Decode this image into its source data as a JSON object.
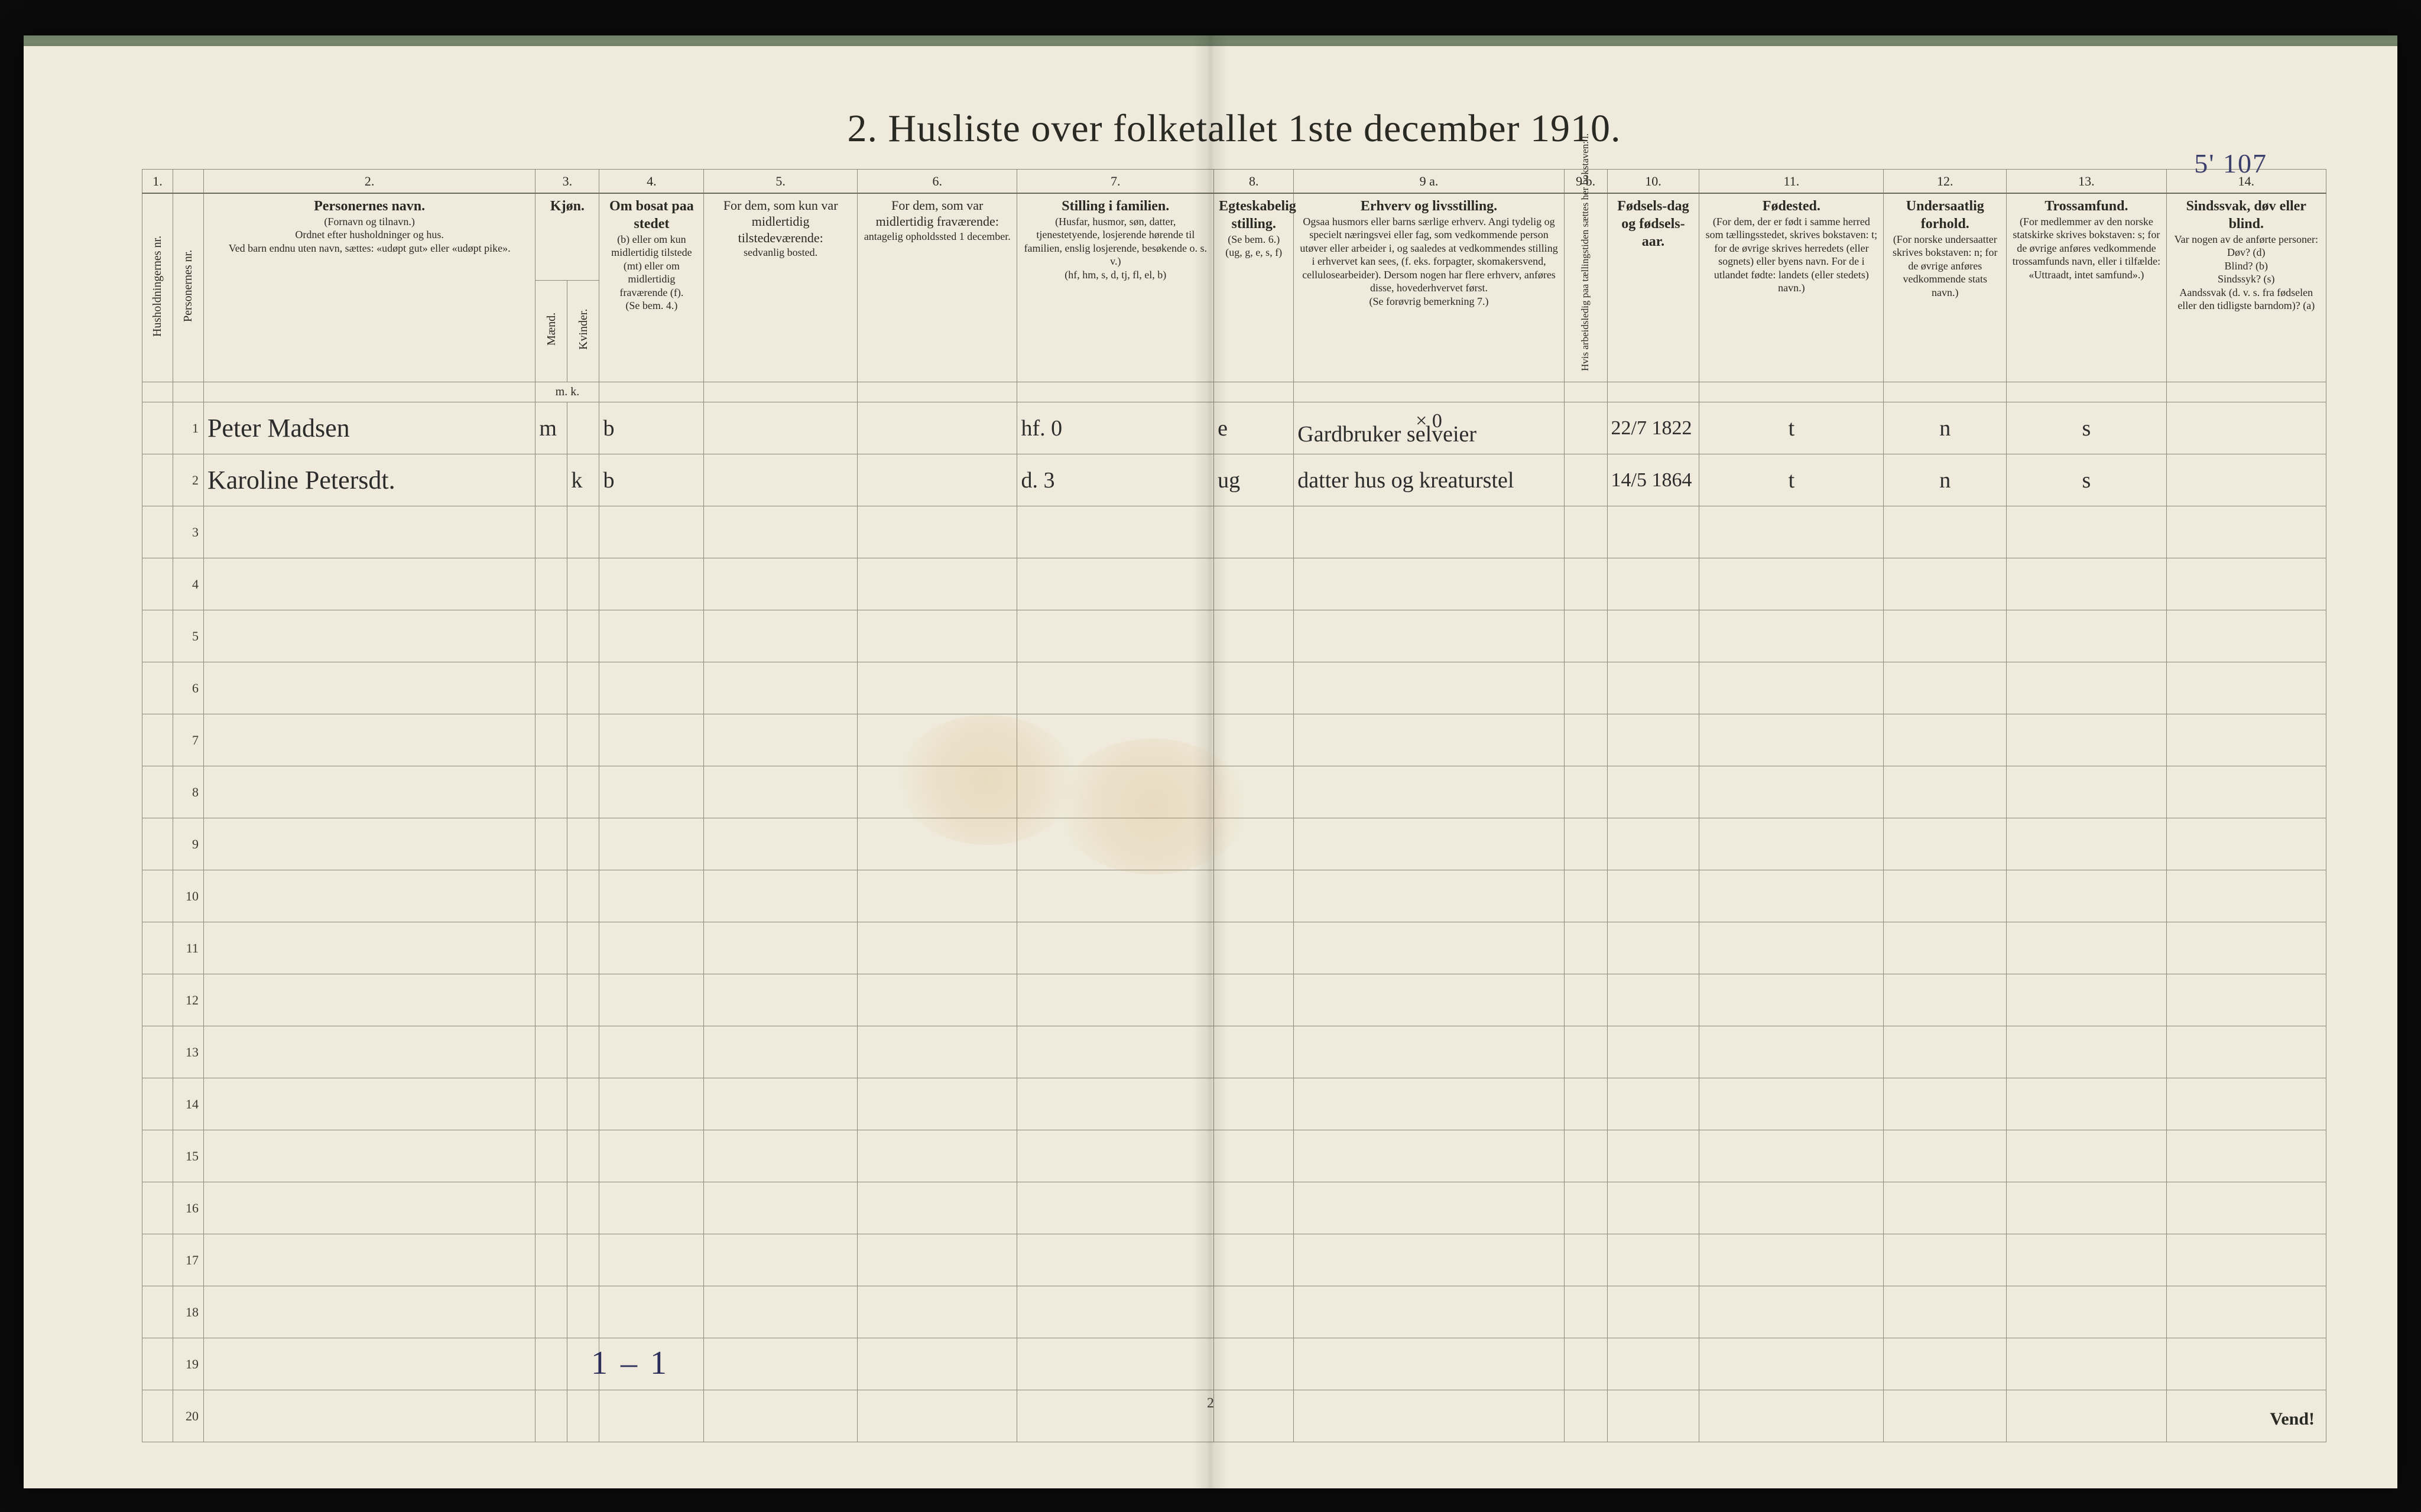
{
  "title": "2.  Husliste over folketallet 1ste december 1910.",
  "page_annotation": "5' 107",
  "bottom_tally": "1 – 1",
  "footer_page_number": "2",
  "footer_vend": "Vend!",
  "colors": {
    "paper": "#efeadb",
    "ink": "#2a2a24",
    "rule": "#8b8b7a",
    "handwriting": "#2c2c2c",
    "pencil_blue": "#2b2e58",
    "frame_black": "#000000"
  },
  "typography": {
    "title_fontsize_pt": 48,
    "header_fontsize_pt": 16,
    "header_small_fontsize_pt": 13,
    "body_row_fontsize_pt": 16,
    "handwriting_fontsize_pt": 32
  },
  "column_numbers": [
    "1.",
    "",
    "2.",
    "3.",
    "",
    "4.",
    "5.",
    "6.",
    "7.",
    "8.",
    "9 a.",
    "9 b.",
    "10.",
    "11.",
    "12.",
    "13.",
    "14."
  ],
  "columns": {
    "c1": {
      "vert1": "Husholdningernes nr."
    },
    "c1b": {
      "vert1": "Personernes nr."
    },
    "c2": {
      "title": "Personernes navn.",
      "sub1": "(Fornavn og tilnavn.)",
      "sub2": "Ordnet efter husholdninger og hus.",
      "sub3": "Ved barn endnu uten navn, sættes: «udøpt gut» eller «udøpt pike»."
    },
    "c3": {
      "title": "Kjøn.",
      "m": "Mænd.",
      "k": "Kvinder.",
      "foot": "m.  k."
    },
    "c4": {
      "title": "Om bosat paa stedet",
      "body": "(b) eller om kun midlertidig tilstede (mt) eller om midlertidig fraværende (f).",
      "foot": "(Se bem. 4.)"
    },
    "c5": {
      "title": "For dem, som kun var midlertidig tilstedeværende:",
      "body": "sedvanlig bosted."
    },
    "c6": {
      "title": "For dem, som var midlertidig fraværende:",
      "body": "antagelig opholdssted 1 december."
    },
    "c7": {
      "title": "Stilling i familien.",
      "body": "(Husfar, husmor, søn, datter, tjenestetyende, losjerende hørende til familien, enslig losjerende, besøkende o. s. v.)",
      "foot": "(hf, hm, s, d, tj, fl, el, b)"
    },
    "c8": {
      "title": "Egteskabelig stilling.",
      "body": "(Se bem. 6.)",
      "foot": "(ug, g, e, s, f)"
    },
    "c9a": {
      "title": "Erhverv og livsstilling.",
      "body": "Ogsaa husmors eller barns særlige erhverv. Angi tydelig og specielt næringsvei eller fag, som vedkommende person utøver eller arbeider i, og saaledes at vedkommendes stilling i erhvervet kan sees, (f. eks. forpagter, skomakersvend, cellulosearbeider). Dersom nogen har flere erhverv, anføres disse, hovederhvervet først.",
      "foot": "(Se forøvrig bemerkning 7.)"
    },
    "c9b": {
      "vert": "Hvis arbeidsledig paa tællingstiden sættes her bokstaven: l."
    },
    "c10": {
      "title": "Fødsels-dag og fødsels-aar."
    },
    "c11": {
      "title": "Fødested.",
      "body": "(For dem, der er født i samme herred som tællingsstedet, skrives bokstaven: t; for de øvrige skrives herredets (eller sognets) eller byens navn. For de i utlandet fødte: landets (eller stedets) navn.)"
    },
    "c12": {
      "title": "Undersaatlig forhold.",
      "body": "(For norske undersaatter skrives bokstaven: n; for de øvrige anføres vedkommende stats navn.)"
    },
    "c13": {
      "title": "Trossamfund.",
      "body": "(For medlemmer av den norske statskirke skrives bokstaven: s; for de øvrige anføres vedkommende trossamfunds navn, eller i tilfælde: «Uttraadt, intet samfund».)"
    },
    "c14": {
      "title": "Sindssvak, døv eller blind.",
      "body": "Var nogen av de anførte personer:",
      "lines": [
        "Døv?          (d)",
        "Blind?        (b)",
        "Sindssyk?   (s)",
        "Aandssvak (d. v. s. fra fødselen eller den tidligste barndom)?  (a)"
      ]
    }
  },
  "rows": [
    {
      "hh": "",
      "pno": "1",
      "name": "Peter Madsen",
      "sex_m": "m",
      "sex_k": "",
      "c4": "b",
      "c5": "",
      "c6": "",
      "c7": "hf.      0",
      "c8": "e",
      "c9a_over": "× 0",
      "c9a": "Gardbruker  selveier",
      "c9b": "",
      "c10": "22/7 1822",
      "c11": "t",
      "c12": "n",
      "c13": "s",
      "c14": ""
    },
    {
      "hh": "",
      "pno": "2",
      "name": "Karoline Petersdt.",
      "sex_m": "",
      "sex_k": "k",
      "c4": "b",
      "c5": "",
      "c6": "",
      "c7": "d.       3",
      "c8": "ug",
      "c9a_over": "",
      "c9a": "datter  hus og kreaturstel",
      "c9b": "",
      "c10": "14/5 1864",
      "c11": "t",
      "c12": "n",
      "c13": "s",
      "c14": ""
    }
  ],
  "blank_rows_from": 3,
  "blank_rows_to": 20
}
